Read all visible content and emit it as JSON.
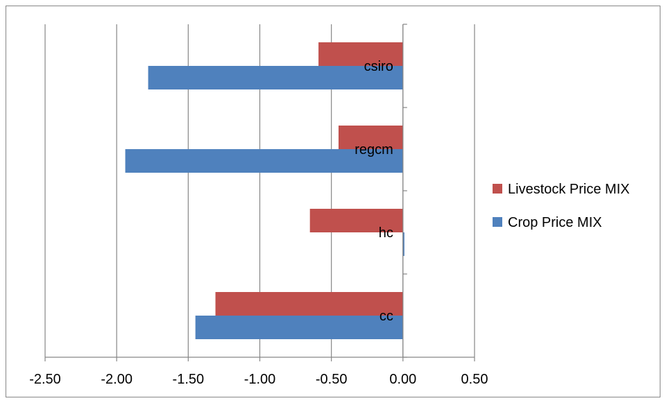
{
  "chart_data": {
    "type": "bar",
    "orientation": "horizontal",
    "categories": [
      "cc",
      "hc",
      "regcm",
      "csiro"
    ],
    "series": [
      {
        "name": "Crop Price MIX",
        "color": "#4F81BD",
        "values": [
          -1.45,
          0.01,
          -1.94,
          -1.78
        ]
      },
      {
        "name": "Livestock Price MIX",
        "color": "#C0504D",
        "values": [
          -1.31,
          -0.65,
          -0.45,
          -0.59
        ]
      }
    ],
    "x_ticks": [
      "-2.50",
      "-2.00",
      "-1.50",
      "-1.00",
      "-0.50",
      "0.00",
      "0.50"
    ],
    "xlim": [
      -2.5,
      0.5
    ],
    "grid": true,
    "legend_position": "right",
    "legend_order": [
      "Livestock Price MIX",
      "Crop Price MIX"
    ],
    "title": "",
    "xlabel": "",
    "ylabel": ""
  }
}
